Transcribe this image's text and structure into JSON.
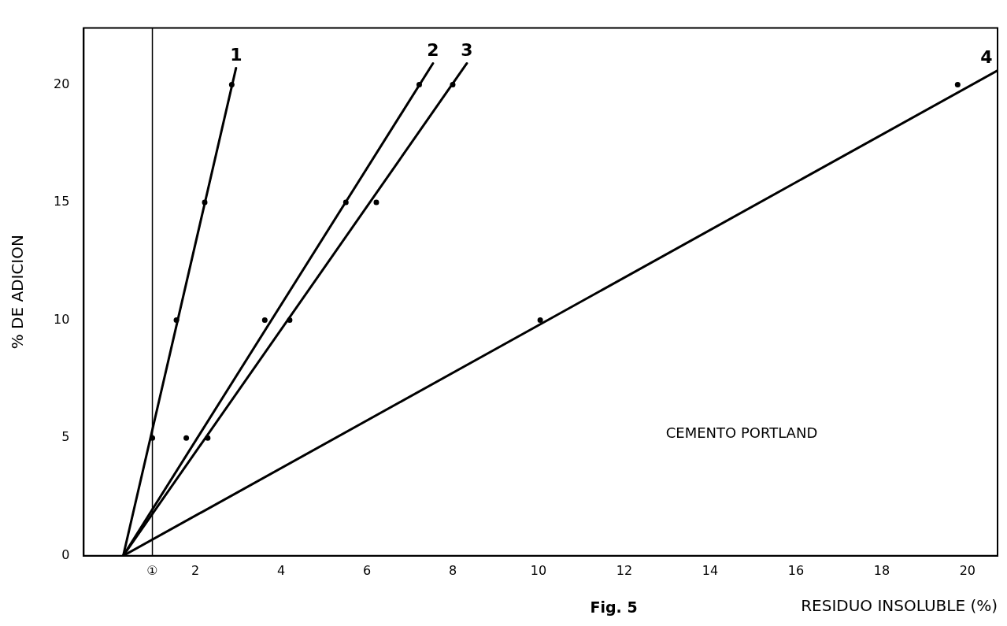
{
  "chart_data": {
    "type": "scatter",
    "xlabel": "RESIDUO INSOLUBLE (%)",
    "ylabel": "% DE ADICION",
    "xlim": [
      -0.6,
      20.7
    ],
    "ylim": [
      0,
      22.4
    ],
    "xticks": [
      {
        "value": 1,
        "label": "①"
      },
      2,
      4,
      6,
      8,
      10,
      12,
      14,
      16,
      18,
      20
    ],
    "yticks": [
      0,
      5,
      10,
      15,
      20
    ],
    "grid": false,
    "marker": "circle",
    "legend": false,
    "ref_lines": [
      {
        "axis": "x",
        "value": 1,
        "label": null,
        "color": "#000000"
      }
    ],
    "annotations": [
      "CEMENTO PORTLAND",
      "Fig. 5"
    ],
    "series": [
      {
        "type": "scatter",
        "color": "#000000",
        "x": [
          1.0,
          1.56,
          2.22,
          2.85
        ],
        "values": [
          5,
          10,
          15,
          20
        ]
      },
      {
        "type": "scatter",
        "color": "#000000",
        "x": [
          1.79,
          3.62,
          5.51,
          7.22
        ],
        "values": [
          5,
          10,
          15,
          20
        ]
      },
      {
        "type": "scatter",
        "color": "#000000",
        "x": [
          2.29,
          4.2,
          6.22,
          8.0
        ],
        "values": [
          5,
          10,
          15,
          20
        ]
      },
      {
        "type": "scatter",
        "color": "#000000",
        "x": [
          10.04,
          19.77
        ],
        "values": [
          10,
          20
        ]
      },
      {
        "type": "line",
        "name": "1",
        "color": "#000000",
        "x": [
          0.32,
          2.95
        ],
        "values": [
          0,
          20.7
        ],
        "marker": "none"
      },
      {
        "type": "line",
        "name": "2",
        "color": "#000000",
        "x": [
          0.32,
          7.54
        ],
        "values": [
          0,
          20.9
        ],
        "marker": "none"
      },
      {
        "type": "line",
        "name": "3",
        "color": "#000000",
        "x": [
          0.32,
          8.33
        ],
        "values": [
          0,
          20.9
        ],
        "marker": "none"
      },
      {
        "type": "line",
        "name": "4",
        "color": "#000000",
        "x": [
          0.32,
          20.7
        ],
        "values": [
          0,
          20.6
        ],
        "marker": "none"
      }
    ]
  }
}
